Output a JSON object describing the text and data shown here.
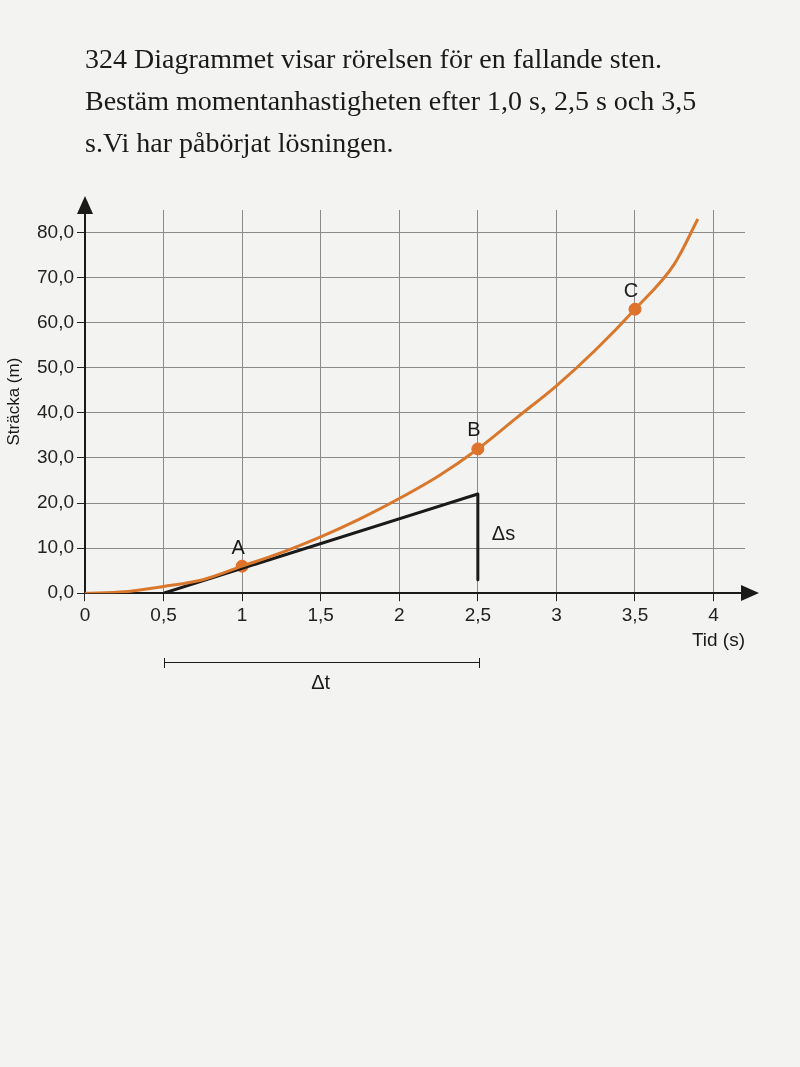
{
  "chart_data": {
    "type": "line",
    "title": "324 Diagrammet visar rörelsen för en fallande sten. Bestäm momentanhastigheten efter 1,0 s, 2,5 s och 3,5 s.Vi har påbörjat lösningen.",
    "xlabel": "Tid (s)",
    "ylabel": "Sträcka (m)",
    "xlim": [
      0,
      4.2
    ],
    "ylim": [
      0,
      85
    ],
    "xticks": [
      0,
      {
        "value": 0.5,
        "label": "0,5"
      },
      1,
      {
        "value": 1.5,
        "label": "1,5"
      },
      2,
      {
        "value": 2.5,
        "label": "2,5"
      },
      3,
      {
        "value": 3.5,
        "label": "3,5"
      },
      4
    ],
    "yticks": [
      {
        "value": 0,
        "label": "0,0"
      },
      {
        "value": 10,
        "label": "10,0"
      },
      {
        "value": 20,
        "label": "20,0"
      },
      {
        "value": 30,
        "label": "30,0"
      },
      {
        "value": 40,
        "label": "40,0"
      },
      {
        "value": 50,
        "label": "50,0"
      },
      {
        "value": 60,
        "label": "60,0"
      },
      {
        "value": 70,
        "label": "70,0"
      },
      {
        "value": 80,
        "label": "80,0"
      }
    ],
    "grid": true,
    "marker": "none",
    "series": [
      {
        "color": "#d9782d",
        "x": [
          0,
          0.25,
          0.5,
          0.75,
          1,
          1.25,
          1.5,
          1.75,
          2,
          2.25,
          2.5,
          2.75,
          3,
          3.25,
          3.5,
          3.75,
          3.9
        ],
        "values": [
          0,
          0.3,
          1.5,
          3,
          6,
          9,
          12.5,
          16.5,
          21,
          26,
          32,
          39,
          46,
          54,
          63,
          73,
          83
        ]
      },
      {
        "type": "line",
        "color": "#1a1a1a",
        "x": [
          0.5,
          2.5,
          2.5
        ],
        "values": [
          0,
          22,
          3
        ]
      },
      {
        "type": "scatter",
        "color": "#e0702a",
        "marker": "circle",
        "x": [
          1,
          2.5,
          3.5
        ],
        "values": [
          6,
          32,
          63
        ]
      }
    ],
    "annotations": [
      "Δt",
      {
        "text": "A",
        "x": 1,
        "y": 6
      },
      {
        "text": "B",
        "x": 2.5,
        "y": 32
      },
      {
        "text": "C",
        "x": 3.5,
        "y": 63
      },
      {
        "text": "Δs",
        "x": 2.5,
        "y": 13
      }
    ]
  }
}
